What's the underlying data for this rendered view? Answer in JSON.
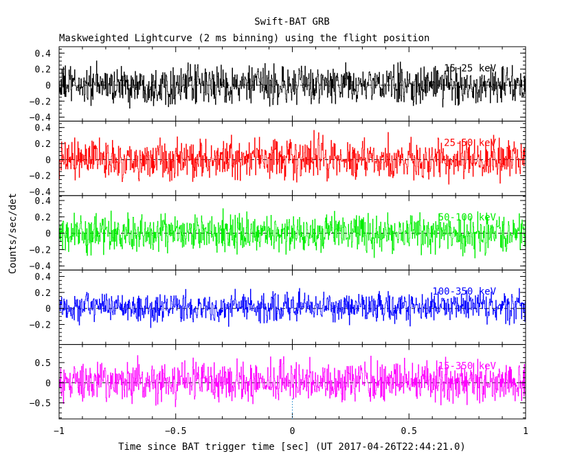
{
  "chart_data": {
    "type": "line",
    "title": "Swift-BAT GRB",
    "subtitle": "Maskweighted Lightcurve (2 ms binning) using the flight position",
    "xlabel": "Time since BAT trigger time [sec] (UT 2017-04-26T22:44:21.0)",
    "ylabel": "Counts/sec/det",
    "xlim": [
      -1,
      1
    ],
    "x_ticks": [
      -1,
      -0.5,
      0,
      0.5,
      1
    ],
    "x_tick_labels": [
      "−1",
      "−0.5",
      "0",
      "0.5",
      "1"
    ],
    "bin_width_sec": 0.002,
    "trigger_marker_x": 0,
    "panels": [
      {
        "name": "15-25 keV",
        "color": "#000000",
        "ylim": [
          -0.45,
          0.48
        ],
        "y_ticks": [
          -0.4,
          -0.2,
          0,
          0.2,
          0.4
        ],
        "y_tick_labels": [
          "−0.4",
          "−0.2",
          "0",
          "0.2",
          "0.4"
        ],
        "mean": 0.0,
        "noise_sigma": 0.13,
        "max_abs": 0.43
      },
      {
        "name": "25-50 keV",
        "color": "#ff0000",
        "ylim": [
          -0.45,
          0.48
        ],
        "y_ticks": [
          -0.4,
          -0.2,
          0,
          0.2,
          0.4
        ],
        "y_tick_labels": [
          "−0.4",
          "−0.2",
          "0",
          "0.2",
          "0.4"
        ],
        "mean": 0.0,
        "noise_sigma": 0.14,
        "max_abs": 0.44
      },
      {
        "name": "50-100 keV",
        "color": "#00ee00",
        "ylim": [
          -0.45,
          0.46
        ],
        "y_ticks": [
          -0.4,
          -0.2,
          0,
          0.2,
          0.4
        ],
        "y_tick_labels": [
          "−0.4",
          "−0.2",
          "0",
          "0.2",
          "0.4"
        ],
        "mean": 0.0,
        "noise_sigma": 0.12,
        "max_abs": 0.42
      },
      {
        "name": "100-350 keV",
        "color": "#0000ff",
        "ylim": [
          -0.45,
          0.48
        ],
        "y_ticks": [
          -0.2,
          0,
          0.2,
          0.4
        ],
        "y_tick_labels": [
          "−0.2",
          "0",
          "0.2",
          "0.4"
        ],
        "mean": 0.02,
        "noise_sigma": 0.1,
        "max_abs": 0.42
      },
      {
        "name": "15-350 keV",
        "color": "#ff00ff",
        "ylim": [
          -0.9,
          0.95
        ],
        "y_ticks": [
          -0.5,
          0,
          0.5
        ],
        "y_tick_labels": [
          "−0.5",
          "0",
          "0.5"
        ],
        "mean": 0.02,
        "noise_sigma": 0.27,
        "max_abs": 0.88
      }
    ]
  }
}
